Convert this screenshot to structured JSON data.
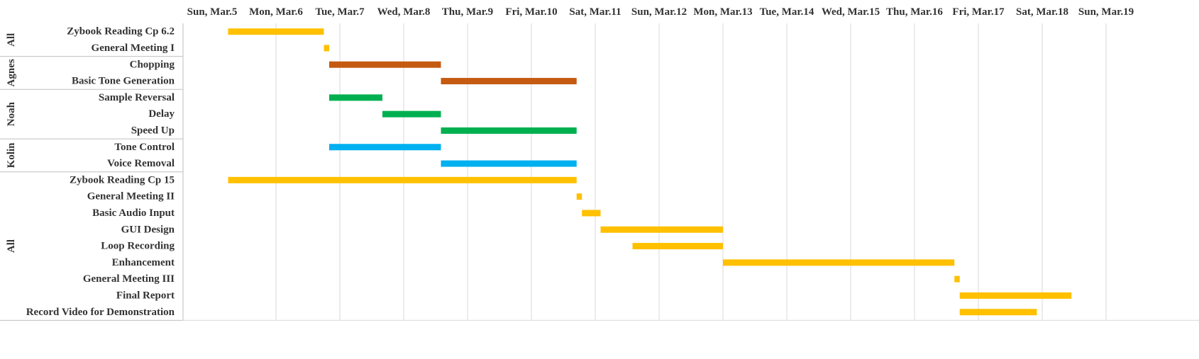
{
  "chart_data": {
    "type": "bar",
    "subtype": "gantt",
    "title": "",
    "xlabel": "",
    "ylabel": "",
    "orientation": "horizontal",
    "grid": "vertical",
    "legend": "none",
    "x_ticks": [
      "Sun, Mar.5",
      "Mon, Mar.6",
      "Tue, Mar.7",
      "Wed, Mar.8",
      "Thu, Mar.9",
      "Fri, Mar.10",
      "Sat, Mar.11",
      "Sun, Mar.12",
      "Mon, Mar.13",
      "Tue, Mar.14",
      "Wed, Mar.15",
      "Thu, Mar.16",
      "Fri, Mar.17",
      "Sat, Mar.18",
      "Sun, Mar.19"
    ],
    "xlim": [
      "Mar 5 00:00",
      "Mar 19 00:00"
    ],
    "groups": [
      {
        "label": "All",
        "color": "#FFC000",
        "tasks": [
          {
            "name": "Zybook Reading Cp 6.2",
            "start": "Mar 5 06:00",
            "end": "Mar 6 18:00"
          },
          {
            "name": "General Meeting I",
            "start": "Mar 6 18:00",
            "end": "Mar 6 20:00"
          }
        ]
      },
      {
        "label": "Agnes",
        "color": "#C55A11",
        "tasks": [
          {
            "name": "Chopping",
            "start": "Mar 6 20:00",
            "end": "Mar 8 14:00"
          },
          {
            "name": "Basic Tone Generation",
            "start": "Mar 8 14:00",
            "end": "Mar 10 17:00"
          }
        ]
      },
      {
        "label": "Noah",
        "color": "#00B050",
        "tasks": [
          {
            "name": "Sample Reversal",
            "start": "Mar 6 20:00",
            "end": "Mar 7 16:00"
          },
          {
            "name": "Delay",
            "start": "Mar 7 16:00",
            "end": "Mar 8 14:00"
          },
          {
            "name": "Speed Up",
            "start": "Mar 8 14:00",
            "end": "Mar 10 17:00"
          }
        ]
      },
      {
        "label": "Kolin",
        "color": "#00B0F0",
        "tasks": [
          {
            "name": "Tone Control",
            "start": "Mar 6 20:00",
            "end": "Mar 8 14:00"
          },
          {
            "name": "Voice Removal",
            "start": "Mar 8 14:00",
            "end": "Mar 10 17:00"
          }
        ]
      },
      {
        "label": "All",
        "color": "#FFC000",
        "tasks": [
          {
            "name": "Zybook Reading Cp 15",
            "start": "Mar 5 06:00",
            "end": "Mar 10 17:00"
          },
          {
            "name": "General Meeting II",
            "start": "Mar 10 17:00",
            "end": "Mar 10 19:00"
          },
          {
            "name": "Basic Audio Input",
            "start": "Mar 10 19:00",
            "end": "Mar 11 02:00"
          },
          {
            "name": "GUI Design",
            "start": "Mar 11 02:00",
            "end": "Mar 13 00:00"
          },
          {
            "name": "Loop Recording",
            "start": "Mar 11 14:00",
            "end": "Mar 13 00:00"
          },
          {
            "name": "Enhancement",
            "start": "Mar 13 00:00",
            "end": "Mar 16 15:00"
          },
          {
            "name": "General Meeting III",
            "start": "Mar 16 15:00",
            "end": "Mar 16 17:00"
          },
          {
            "name": "Final Report",
            "start": "Mar 16 17:00",
            "end": "Mar 18 11:00"
          },
          {
            "name": "Record Video for Demonstration",
            "start": "Mar 16 17:00",
            "end": "Mar 17 22:00"
          }
        ]
      }
    ]
  }
}
